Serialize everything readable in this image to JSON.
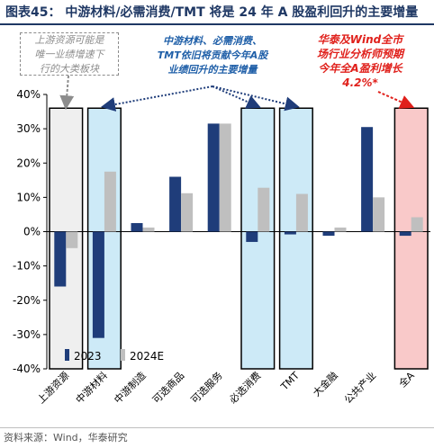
{
  "title": "图表45：  中游材料/必需消费/TMT 将是 24 年 A 股盈利回升的主要增量",
  "source": "资料来源：Wind，华泰研究",
  "callouts": {
    "grey": "上游资源可能是\n唯一业绩增速下\n行的大类板块",
    "blue": "中游材料、必需消费、\nTMT依旧将贡献今年A股\n业绩回升的主要增量",
    "red": "华泰及Wind全市\n场行业分析师预期\n今年全A盈利增长\n4.2%*"
  },
  "colors": {
    "series_2023": "#1f3d7a",
    "series_2024E": "#bfbfbf",
    "highlight_blue_fill": "#cdeaf7",
    "highlight_red_fill": "#f9c9c9",
    "highlight_grey_fill": "#efefef",
    "arrow_blue": "#1f3d7a",
    "arrow_red": "#e0201b",
    "arrow_grey": "#8c8c8c"
  },
  "chart_data": {
    "type": "bar",
    "categories": [
      "上游资源",
      "中游材料",
      "中游制造",
      "可选商品",
      "可选服务",
      "必选消费",
      "TMT",
      "大金融",
      "公共产业",
      "全A"
    ],
    "series": [
      {
        "name": "2023",
        "values": [
          -16,
          -31,
          2.5,
          16,
          31.5,
          -3,
          -0.8,
          -1.2,
          30.5,
          -1.2
        ]
      },
      {
        "name": "2024E",
        "values": [
          -4.8,
          17.5,
          1.2,
          11.2,
          31.5,
          12.8,
          11,
          1.2,
          10,
          4.2
        ]
      }
    ],
    "ylim": [
      -40,
      40
    ],
    "yticks": [
      "40%",
      "30%",
      "20%",
      "10%",
      "0%",
      "-10%",
      "-20%",
      "-30%",
      "-40%"
    ],
    "yticks_values": [
      40,
      30,
      20,
      10,
      0,
      -10,
      -20,
      -30,
      -40
    ],
    "legend": {
      "placement": "bottom-left",
      "labels": [
        "2023",
        "2024E"
      ]
    },
    "highlighted_categories": {
      "grey": [
        "上游资源"
      ],
      "blue": [
        "中游材料",
        "必选消费",
        "TMT"
      ],
      "red": [
        "全A"
      ]
    },
    "grid": false
  }
}
